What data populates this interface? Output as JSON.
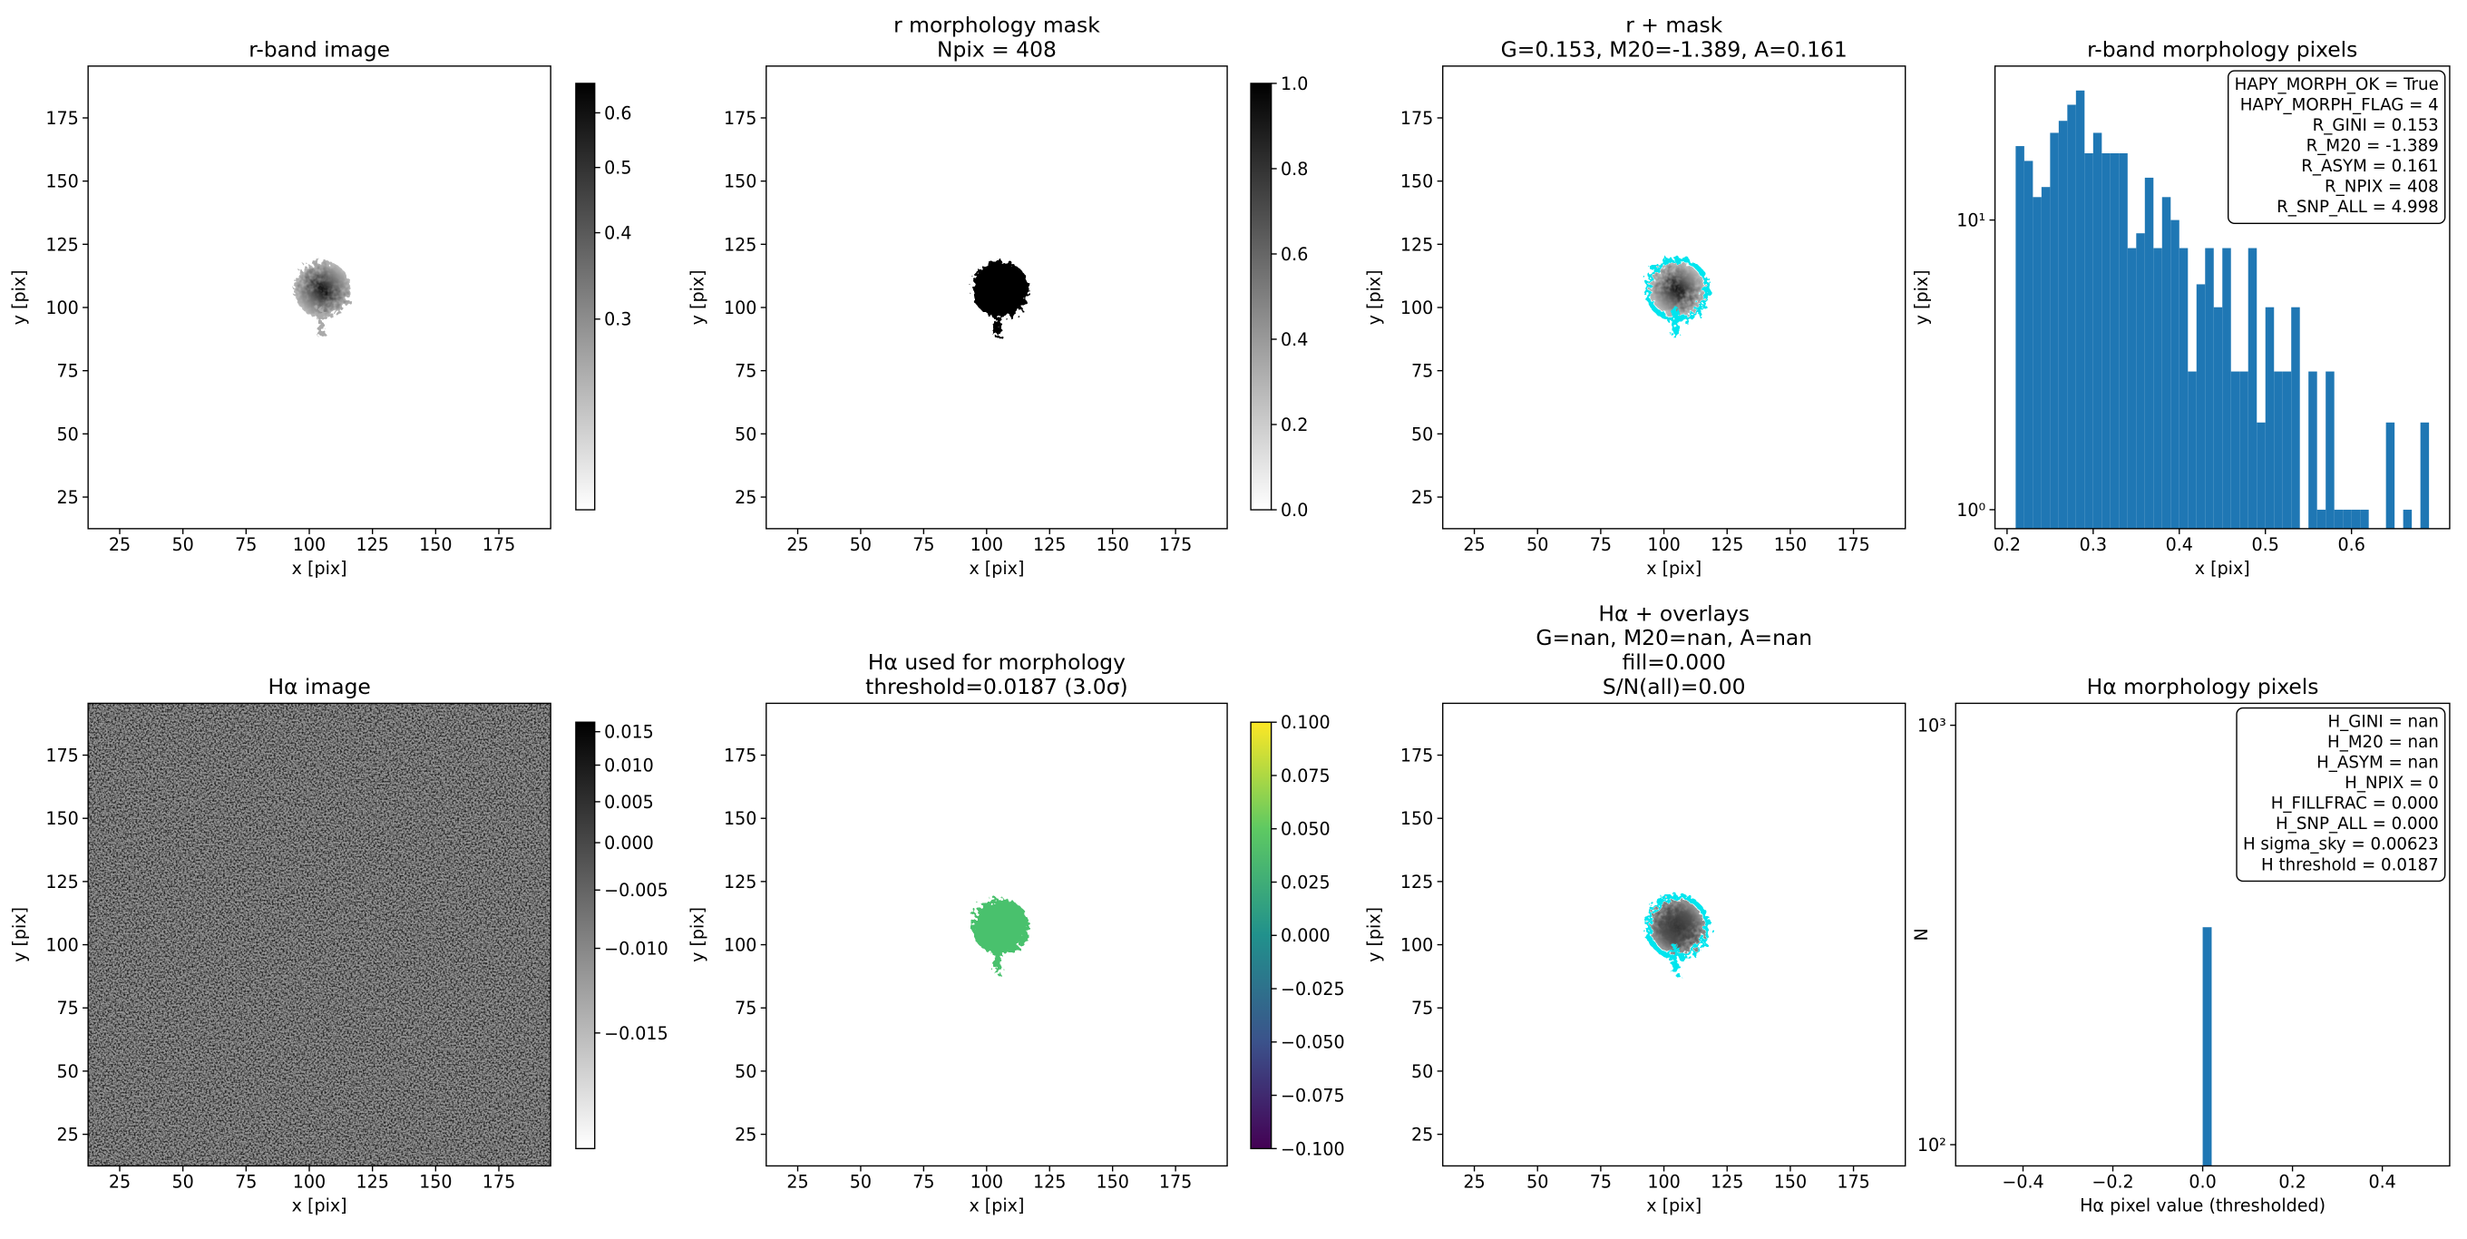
{
  "chart_data": [
    {
      "type": "image",
      "title": [
        "r-band image"
      ],
      "xlabel": "x [pix]",
      "ylabel": "y [pix]",
      "xlim": [
        12.5,
        195.5
      ],
      "ylim": [
        12.5,
        195.5
      ],
      "xticks": [
        25,
        50,
        75,
        100,
        125,
        150,
        175
      ],
      "yticks": [
        25,
        50,
        75,
        100,
        125,
        150,
        175
      ],
      "colorbar": {
        "colors": [
          "#ffffff",
          "#000000"
        ],
        "scale": "sqrt",
        "clim": [
          0.21,
          0.66
        ],
        "ticks": [
          0.3,
          0.4,
          0.5,
          0.6
        ]
      }
    },
    {
      "type": "image",
      "title": [
        "r morphology mask",
        "Npix = 408"
      ],
      "xlabel": "x [pix]",
      "ylabel": "y [pix]",
      "xlim": [
        12.5,
        195.5
      ],
      "ylim": [
        12.5,
        195.5
      ],
      "xticks": [
        25,
        50,
        75,
        100,
        125,
        150,
        175
      ],
      "yticks": [
        25,
        50,
        75,
        100,
        125,
        150,
        175
      ],
      "colorbar": {
        "colors": [
          "#ffffff",
          "#000000"
        ],
        "scale": "linear",
        "clim": [
          0,
          1
        ],
        "ticks": [
          {
            "value": 0,
            "label": "0.0"
          },
          0.2,
          0.4,
          0.6,
          0.8,
          {
            "value": 1,
            "label": "1.0"
          }
        ]
      }
    },
    {
      "type": "image",
      "title": [
        "r + mask",
        "G=0.153, M20=-1.389, A=0.161"
      ],
      "xlabel": "x [pix]",
      "ylabel": "y [pix]",
      "xlim": [
        12.5,
        195.5
      ],
      "ylim": [
        12.5,
        195.5
      ],
      "xticks": [
        25,
        50,
        75,
        100,
        125,
        150,
        175
      ],
      "yticks": [
        25,
        50,
        75,
        100,
        125,
        150,
        175
      ]
    },
    {
      "type": "histogram",
      "title": [
        "r-band morphology pixels"
      ],
      "xlabel": "x [pix]",
      "ylabel": "y [pix]",
      "color": "#1f77b4",
      "yscale": "log",
      "bins": [
        0.21,
        0.22,
        0.23,
        0.24,
        0.25,
        0.26,
        0.27,
        0.28,
        0.29,
        0.3,
        0.31,
        0.32,
        0.33,
        0.34,
        0.35,
        0.36,
        0.37,
        0.38,
        0.39,
        0.4,
        0.41,
        0.42,
        0.43,
        0.44,
        0.45,
        0.46,
        0.47,
        0.48,
        0.49,
        0.5,
        0.51,
        0.52,
        0.53,
        0.54,
        0.55,
        0.56,
        0.57,
        0.58,
        0.59,
        0.6,
        0.61,
        0.62,
        0.63,
        0.64,
        0.65,
        0.66,
        0.67,
        0.68,
        0.69
      ],
      "counts": [
        18,
        16,
        12,
        13,
        20,
        22,
        25,
        28,
        17,
        20,
        17,
        17,
        17,
        8,
        9,
        14,
        8,
        12,
        10,
        8,
        3,
        6,
        8,
        5,
        8,
        3,
        3,
        8,
        2,
        5,
        3,
        3,
        5,
        0,
        3,
        1,
        3,
        1,
        1,
        1,
        1,
        0,
        0,
        2,
        0,
        1,
        0,
        2
      ],
      "xlim": [
        0.186,
        0.714
      ],
      "ylim": [
        0.86,
        34
      ],
      "xticks": [
        0.2,
        0.3,
        0.4,
        0.5,
        0.6
      ],
      "yticks": [
        {
          "value": 1,
          "label": "10⁰"
        },
        {
          "value": 10,
          "label": "10¹"
        }
      ],
      "annotation": [
        "HAPY_MORPH_OK = True",
        "HAPY_MORPH_FLAG = 4",
        "R_GINI = 0.153",
        "R_M20 = -1.389",
        "R_ASYM = 0.161",
        "R_NPIX = 408",
        "R_SNP_ALL = 4.998"
      ]
    },
    {
      "type": "image",
      "title": [
        "Hα image"
      ],
      "xlabel": "x [pix]",
      "ylabel": "y [pix]",
      "xlim": [
        12.5,
        195.5
      ],
      "ylim": [
        12.5,
        195.5
      ],
      "xticks": [
        25,
        50,
        75,
        100,
        125,
        150,
        175
      ],
      "yticks": [
        25,
        50,
        75,
        100,
        125,
        150,
        175
      ],
      "colorbar": {
        "colors": [
          "#ffffff",
          "#000000"
        ],
        "scale": "sqrt",
        "clim": [
          -0.0175,
          0.0165
        ],
        "ticks": [
          {
            "value": -0.015,
            "label": "−0.015"
          },
          {
            "value": -0.01,
            "label": "−0.010"
          },
          {
            "value": -0.005,
            "label": "−0.005"
          },
          {
            "value": 0,
            "label": "0.000"
          },
          {
            "value": 0.005,
            "label": "0.005"
          },
          {
            "value": 0.01,
            "label": "0.010"
          },
          {
            "value": 0.015,
            "label": "0.015"
          }
        ]
      }
    },
    {
      "type": "image",
      "title": [
        "Hα used for morphology",
        "threshold=0.0187 (3.0σ)"
      ],
      "xlabel": "x [pix]",
      "ylabel": "y [pix]",
      "xlim": [
        12.5,
        195.5
      ],
      "ylim": [
        12.5,
        195.5
      ],
      "xticks": [
        25,
        50,
        75,
        100,
        125,
        150,
        175
      ],
      "yticks": [
        25,
        50,
        75,
        100,
        125,
        150,
        175
      ],
      "colorbar": {
        "colors": [
          "#440154",
          "#3b528b",
          "#21918c",
          "#5ec962",
          "#fde725"
        ],
        "scale": "linear",
        "clim": [
          -0.1,
          0.1
        ],
        "ticks": [
          {
            "value": -0.1,
            "label": "−0.100"
          },
          {
            "value": -0.075,
            "label": "−0.075"
          },
          {
            "value": -0.05,
            "label": "−0.050"
          },
          {
            "value": -0.025,
            "label": "−0.025"
          },
          {
            "value": 0,
            "label": "0.000"
          },
          {
            "value": 0.025,
            "label": "0.025"
          },
          {
            "value": 0.05,
            "label": "0.050"
          },
          {
            "value": 0.075,
            "label": "0.075"
          },
          {
            "value": 0.1,
            "label": "0.100"
          }
        ]
      }
    },
    {
      "type": "image",
      "title": [
        "Hα + overlays",
        "G=nan, M20=nan, A=nan",
        "fill=0.000",
        "S/N(all)=0.00"
      ],
      "xlabel": "x [pix]",
      "ylabel": "y [pix]",
      "xlim": [
        12.5,
        195.5
      ],
      "ylim": [
        12.5,
        195.5
      ],
      "xticks": [
        25,
        50,
        75,
        100,
        125,
        150,
        175
      ],
      "yticks": [
        25,
        50,
        75,
        100,
        125,
        150,
        175
      ]
    },
    {
      "type": "histogram",
      "title": [
        "Hα morphology pixels"
      ],
      "xlabel": "Hα pixel value (thresholded)",
      "ylabel": "N",
      "color": "#1f77b4",
      "yscale": "log",
      "bins": [
        0,
        0.02
      ],
      "counts": [
        330
      ],
      "xlim": [
        -0.55,
        0.55
      ],
      "ylim": [
        89,
        1128
      ],
      "xticks": [
        {
          "value": -0.4,
          "label": "−0.4"
        },
        {
          "value": -0.2,
          "label": "−0.2"
        },
        {
          "value": 0,
          "label": "0.0"
        },
        0.2,
        0.4
      ],
      "yticks": [
        {
          "value": 100,
          "label": "10²"
        },
        {
          "value": 1000,
          "label": "10³"
        }
      ],
      "annotation": [
        "H_GINI = nan",
        "H_M20 = nan",
        "H_ASYM = nan",
        "H_NPIX = 0",
        "H_FILLFRAC = 0.000",
        "H_SNP_ALL = 0.000",
        "H sigma_sky = 0.00623",
        "H threshold = 0.0187"
      ]
    }
  ]
}
